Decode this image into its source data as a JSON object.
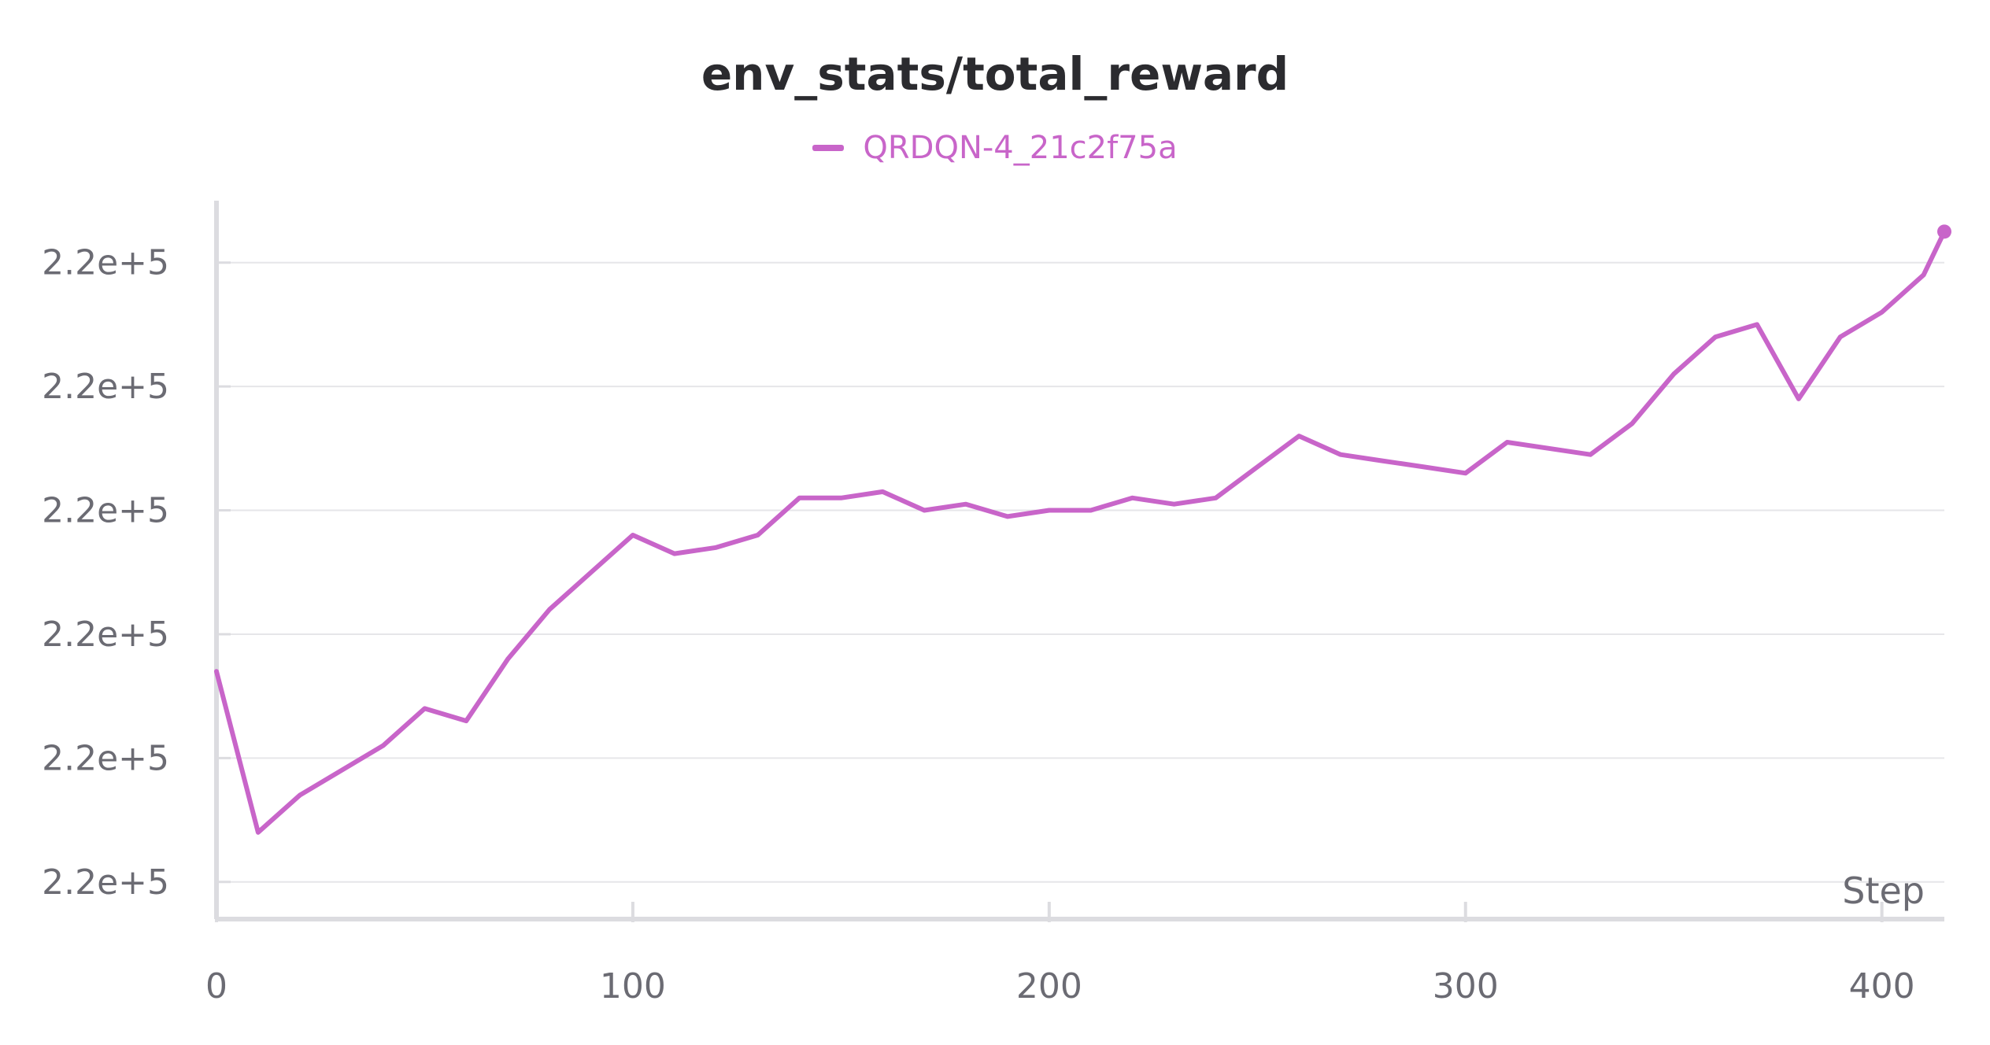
{
  "chart_data": {
    "type": "line",
    "title": "env_stats/total_reward",
    "xlabel": "Step",
    "ylabel": "",
    "xlim": [
      0,
      415
    ],
    "ylim": [
      -0.3,
      5.5
    ],
    "x_ticks": [
      0,
      100,
      200,
      300,
      400
    ],
    "x_tick_labels": [
      "0",
      "100",
      "200",
      "300",
      "400"
    ],
    "y_ticks": [
      0,
      1,
      2,
      3,
      4,
      5
    ],
    "y_tick_labels": [
      "2.2e+5",
      "2.2e+5",
      "2.2e+5",
      "2.2e+5",
      "2.2e+5",
      "2.2e+5"
    ],
    "grid": true,
    "legend_position": "top-center",
    "series": [
      {
        "name": "QRDQN-4_21c2f75a",
        "color": "#c865c9",
        "x": [
          0,
          10,
          20,
          30,
          40,
          50,
          60,
          70,
          80,
          90,
          100,
          110,
          120,
          130,
          140,
          150,
          160,
          170,
          180,
          190,
          200,
          210,
          220,
          230,
          240,
          250,
          260,
          270,
          280,
          290,
          300,
          310,
          320,
          330,
          340,
          350,
          360,
          370,
          380,
          390,
          400,
          410,
          415
        ],
        "y": [
          1.7,
          0.4,
          0.7,
          0.9,
          1.1,
          1.4,
          1.3,
          1.8,
          2.2,
          2.5,
          2.8,
          2.65,
          2.7,
          2.8,
          3.1,
          3.1,
          3.15,
          3.0,
          3.05,
          2.95,
          3.0,
          3.0,
          3.1,
          3.05,
          3.1,
          3.35,
          3.6,
          3.45,
          3.4,
          3.35,
          3.3,
          3.55,
          3.5,
          3.45,
          3.7,
          4.1,
          4.4,
          4.5,
          3.9,
          4.4,
          4.6,
          4.9,
          5.25
        ]
      }
    ]
  }
}
